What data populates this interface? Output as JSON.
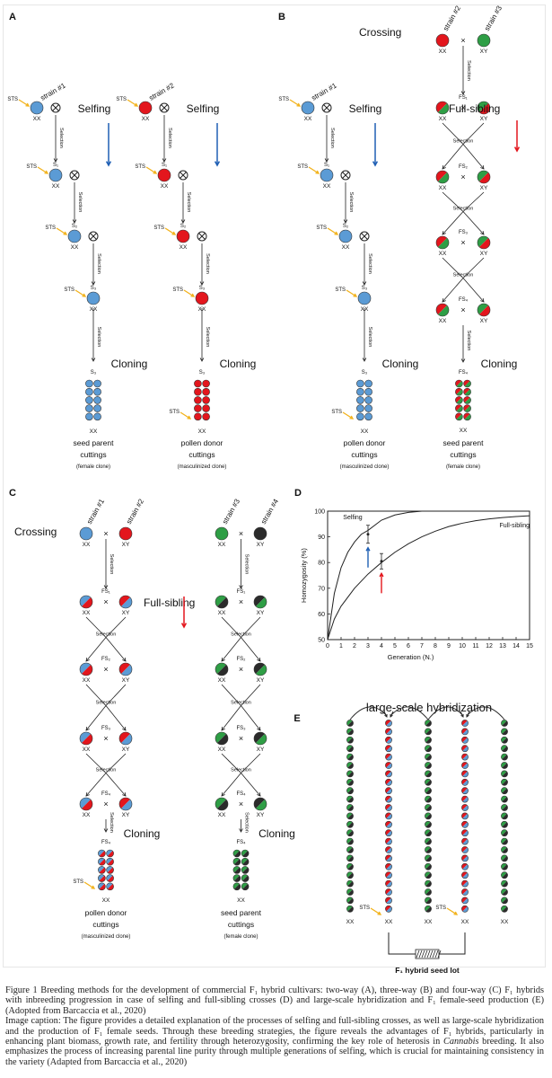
{
  "figure": {
    "panel_labels": {
      "A": "A",
      "B": "B",
      "C": "C",
      "D": "D",
      "E": "E"
    },
    "common": {
      "selfing": "Selfing",
      "cloning": "Cloning",
      "crossing": "Crossing",
      "full_sibling": "Full-sibling",
      "selection": "Selection",
      "sts": "STS",
      "xx": "XX",
      "xy": "XY",
      "cross": "×"
    },
    "strains": [
      "strain #1",
      "strain #2",
      "strain #3",
      "strain #4"
    ],
    "self_generations": [
      "",
      "S₁",
      "S₂",
      "S₃"
    ],
    "self_final": "S₃",
    "fs_generations": [
      "FS₁",
      "FS₂",
      "FS₃",
      "FS₄"
    ],
    "fs_final": "FS₄",
    "cuttings": {
      "seed_parent": [
        "seed parent",
        "cuttings",
        "(female clone)"
      ],
      "pollen_donor": [
        "pollen donor",
        "cuttings",
        "(masculinized clone)"
      ]
    },
    "colors": {
      "blue": "#5b9bd5",
      "red": "#e3161d",
      "green": "#2e9e45",
      "black": "#2b2b2b",
      "sts_arrow": "#f2b21b",
      "selfing_arrow": "#1f5fb4",
      "fullsib_arrow": "#e3161d"
    }
  },
  "chart_data": {
    "type": "line",
    "title": "",
    "xlabel": "Generation (N.)",
    "ylabel": "Homozygosity (%)",
    "xlim": [
      0,
      15
    ],
    "ylim": [
      50,
      100
    ],
    "xticks": [
      0,
      1,
      2,
      3,
      4,
      5,
      6,
      7,
      8,
      9,
      10,
      11,
      12,
      13,
      14,
      15
    ],
    "yticks": [
      50,
      60,
      70,
      80,
      90,
      100
    ],
    "grid": false,
    "series": [
      {
        "name": "Selfing",
        "x": [
          0,
          0.5,
          1,
          1.5,
          2,
          2.5,
          3,
          4,
          5,
          6,
          7
        ],
        "y": [
          50,
          68,
          78,
          84,
          88,
          91,
          92.5,
          96.5,
          98.5,
          99.5,
          100
        ]
      },
      {
        "name": "Full-sibling",
        "x": [
          0,
          0.5,
          1,
          2,
          3,
          4,
          5,
          6,
          7,
          8,
          9,
          10,
          11,
          12,
          13,
          14,
          15
        ],
        "y": [
          50,
          58,
          63,
          70,
          75.5,
          80,
          84,
          87.3,
          90,
          92.2,
          94,
          95.3,
          96.3,
          97,
          97.5,
          97.9,
          98.2
        ]
      }
    ],
    "error_bars": [
      {
        "series": "Selfing",
        "x": 3,
        "y": 91,
        "err": 3.5,
        "arrow_color": "#1f5fb4"
      },
      {
        "series": "Full-sibling",
        "x": 4,
        "y": 80.5,
        "err": 3,
        "arrow_color": "#e3161d"
      }
    ],
    "legend": "inline labels"
  },
  "panel_e": {
    "title": "large-scale hybridization",
    "seed_lot": "F₁ hybrid seed lot"
  },
  "caption": {
    "figure_text": "Figure 1 Breeding methods for the development of commercial F₁ hybrid cultivars: two-way (A), three-way (B) and four-way (C) F₁ hybrids with inbreeding progression in case of selfing and full-sibling crosses (D) and large-scale hybridization and F₁ female-seed production (E) (Adopted from Barcaccia et al., 2020)",
    "image_caption_before": "Image caption: The figure provides a detailed explanation of the processes of selfing and full-sibling crosses, as well as large-scale hybridization and the production of F₁ female seeds. Through these breeding strategies, the figure reveals the advantages of F₁ hybrids, particularly in enhancing plant biomass, growth rate, and fertility through heterozygosity, confirming the key role of heterosis in ",
    "image_caption_italic": "Cannabis",
    "image_caption_after": " breeding. It also emphasizes the process of increasing parental line purity through multiple generations of selfing, which is crucial for maintaining consistency in the variety (Adapted from Barcaccia et al., 2020)"
  }
}
